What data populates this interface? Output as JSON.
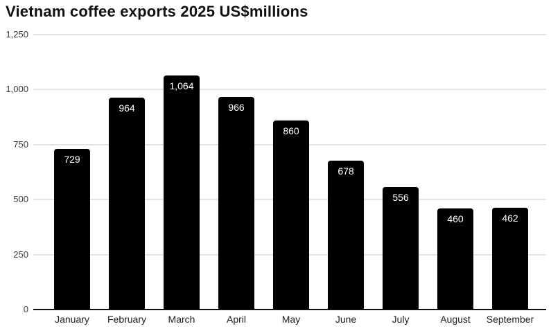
{
  "title": "Vietnam coffee exports 2025 US$millions",
  "colors": {
    "background": "#ffffff",
    "bar": "#000000",
    "bar_label": "#ffffff",
    "gridline": "#e2e2e2",
    "zero_axis": "#0d0d0d",
    "ytick_label": "#3d3d3d",
    "xtick_label": "#1c1c1c",
    "title": "#111111"
  },
  "chart_data": {
    "type": "bar",
    "title": "Vietnam coffee exports 2025 US$millions",
    "categories": [
      "January",
      "February",
      "March",
      "April",
      "May",
      "June",
      "July",
      "August",
      "September"
    ],
    "values": [
      729,
      964,
      1064,
      966,
      860,
      678,
      556,
      460,
      462
    ],
    "value_labels": [
      "729",
      "964",
      "1,064",
      "966",
      "860",
      "678",
      "556",
      "460",
      "462"
    ],
    "xlabel": "",
    "ylabel": "",
    "ylim": [
      0,
      1250
    ],
    "yticks": [
      0,
      250,
      500,
      750,
      1000,
      1250
    ],
    "ytick_labels": [
      "0",
      "250",
      "500",
      "750",
      "1,000",
      "1,250"
    ],
    "grid": true,
    "legend": false
  }
}
